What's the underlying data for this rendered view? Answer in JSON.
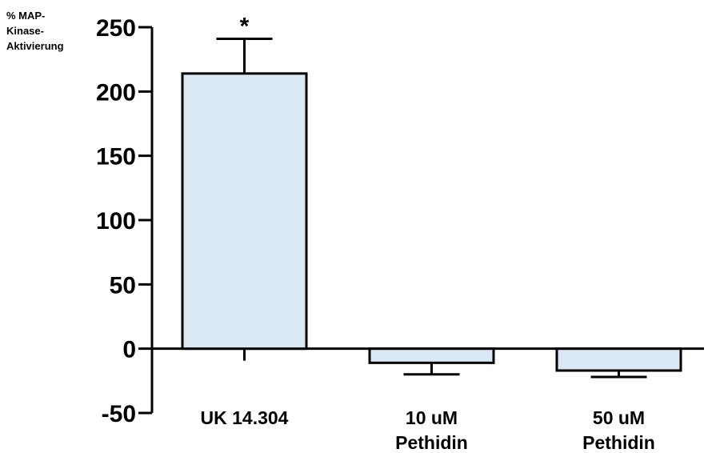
{
  "chart_data": {
    "type": "bar",
    "ylabel_lines": [
      "% MAP-",
      "Kinase-",
      "Aktivierung"
    ],
    "categories": [
      [
        "UK 14.304"
      ],
      [
        "10 uM",
        "Pethidin"
      ],
      [
        "50 uM",
        "Pethidin"
      ]
    ],
    "values": [
      214,
      -11,
      -17
    ],
    "errors": [
      27,
      9,
      5
    ],
    "annotations": [
      "*",
      "",
      ""
    ],
    "yticks": [
      250,
      200,
      150,
      100,
      50,
      0,
      -50
    ],
    "ylim": [
      -50,
      250
    ],
    "bar_color": "#d9e8f3",
    "grid": false
  }
}
